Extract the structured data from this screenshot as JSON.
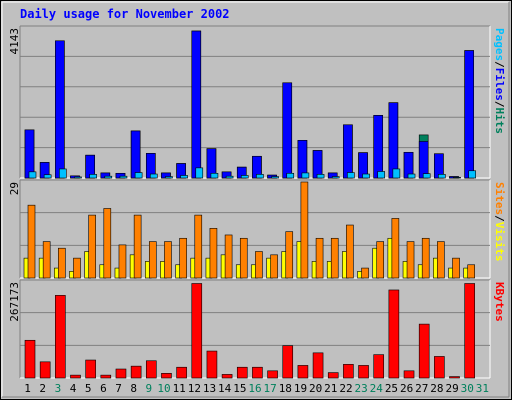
{
  "title": "Daily usage for November 2002",
  "colors": {
    "background": "#c0c0c0",
    "plot_bg": "#c0c0c0",
    "title": "#0000ff",
    "hits": "#00805c",
    "files": "#0000ff",
    "pages": "#00c0ff",
    "visits": "#ffff00",
    "sites": "#ff8000",
    "kbytes": "#ff0000",
    "weekday_label": "#000000",
    "weekend_label": "#00805c",
    "gridline": "#808080"
  },
  "chart_data": [
    {
      "type": "bar",
      "name": "hits-files-pages",
      "categories": [
        "1",
        "2",
        "3",
        "4",
        "5",
        "6",
        "7",
        "8",
        "9",
        "10",
        "11",
        "12",
        "13",
        "14",
        "15",
        "16",
        "17",
        "18",
        "19",
        "20",
        "21",
        "22",
        "23",
        "24",
        "25",
        "26",
        "27",
        "28",
        "29",
        "30",
        "31"
      ],
      "y_max_label": "4143",
      "ylim": [
        0,
        4143
      ],
      "legend": [
        "Pages",
        "/",
        "Files",
        "/",
        "Hits"
      ],
      "series": [
        {
          "name": "Hits",
          "values": [
            1330,
            430,
            3790,
            60,
            630,
            140,
            130,
            1300,
            680,
            140,
            400,
            4060,
            810,
            170,
            300,
            600,
            80,
            2630,
            1040,
            760,
            140,
            1470,
            700,
            1730,
            2080,
            710,
            1190,
            670,
            40,
            3520,
            0
          ]
        },
        {
          "name": "Files",
          "values": [
            1330,
            430,
            3790,
            60,
            630,
            140,
            130,
            1300,
            680,
            140,
            400,
            4060,
            810,
            170,
            300,
            600,
            80,
            2630,
            1040,
            760,
            140,
            1470,
            700,
            1730,
            2080,
            710,
            1010,
            670,
            40,
            3520,
            0
          ]
        },
        {
          "name": "Pages",
          "values": [
            170,
            90,
            250,
            30,
            100,
            50,
            50,
            150,
            110,
            40,
            70,
            280,
            130,
            50,
            70,
            100,
            40,
            130,
            140,
            100,
            40,
            150,
            110,
            180,
            250,
            110,
            120,
            100,
            20,
            200,
            0
          ]
        }
      ]
    },
    {
      "type": "bar",
      "name": "visits-sites",
      "categories": [
        "1",
        "2",
        "3",
        "4",
        "5",
        "6",
        "7",
        "8",
        "9",
        "10",
        "11",
        "12",
        "13",
        "14",
        "15",
        "16",
        "17",
        "18",
        "19",
        "20",
        "21",
        "22",
        "23",
        "24",
        "25",
        "26",
        "27",
        "28",
        "29",
        "30",
        "31"
      ],
      "y_max_label": "29",
      "ylim": [
        0,
        29
      ],
      "legend": [
        "Sites",
        "/",
        "Visits"
      ],
      "series": [
        {
          "name": "Visits",
          "values": [
            6,
            6,
            3,
            2,
            8,
            4,
            3,
            7,
            5,
            5,
            4,
            6,
            6,
            7,
            4,
            4,
            6,
            8,
            11,
            5,
            5,
            8,
            2,
            9,
            12,
            5,
            4,
            6,
            3,
            3,
            0
          ]
        },
        {
          "name": "Sites",
          "values": [
            22,
            11,
            9,
            6,
            19,
            21,
            10,
            19,
            11,
            11,
            12,
            19,
            15,
            13,
            12,
            8,
            7,
            14,
            29,
            12,
            12,
            16,
            3,
            11,
            18,
            11,
            12,
            11,
            6,
            4,
            0
          ]
        }
      ]
    },
    {
      "type": "bar",
      "name": "kbytes",
      "categories": [
        "1",
        "2",
        "3",
        "4",
        "5",
        "6",
        "7",
        "8",
        "9",
        "10",
        "11",
        "12",
        "13",
        "14",
        "15",
        "16",
        "17",
        "18",
        "19",
        "20",
        "21",
        "22",
        "23",
        "24",
        "25",
        "26",
        "27",
        "28",
        "29",
        "30",
        "31"
      ],
      "y_max_label": "267173",
      "ylim": [
        0,
        267173
      ],
      "legend": [
        "KBytes"
      ],
      "series": [
        {
          "name": "KBytes",
          "values": [
            105000,
            45000,
            230000,
            8000,
            50000,
            8000,
            25000,
            33000,
            48000,
            13000,
            30000,
            263000,
            75000,
            10000,
            30000,
            30000,
            20000,
            90000,
            35000,
            70000,
            15000,
            38000,
            35000,
            65000,
            245000,
            20000,
            150000,
            60000,
            4000,
            263000,
            0
          ]
        }
      ]
    }
  ],
  "weekend_days": [
    3,
    9,
    10,
    16,
    17,
    23,
    24,
    30,
    31
  ]
}
